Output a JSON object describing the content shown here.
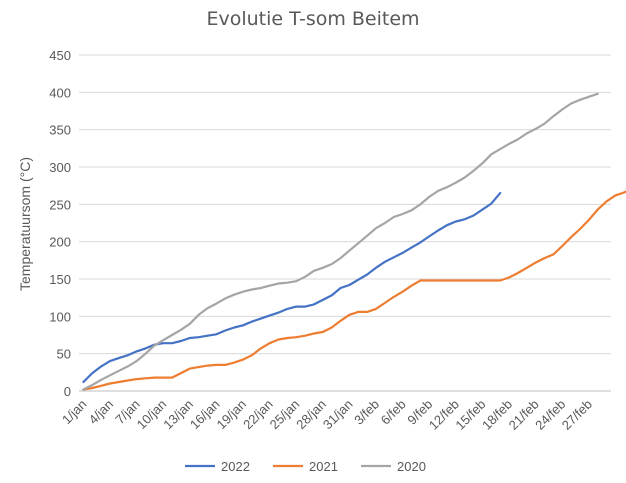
{
  "chart_data": {
    "type": "line",
    "title": "Evolutie T-som Beitem",
    "xlabel": "",
    "ylabel": "Temperatuursom (°C)",
    "ylim": [
      0,
      450
    ],
    "yticks": [
      0,
      50,
      100,
      150,
      200,
      250,
      300,
      350,
      400,
      450
    ],
    "grid": "horizontal",
    "legend_position": "bottom",
    "x_tick_labels": [
      "1/jan",
      "4/jan",
      "7/jan",
      "10/jan",
      "13/jan",
      "16/jan",
      "19/jan",
      "22/jan",
      "25/jan",
      "28/jan",
      "31/jan",
      "3/feb",
      "6/feb",
      "9/feb",
      "12/feb",
      "15/feb",
      "18/feb",
      "21/feb",
      "24/feb",
      "27/feb"
    ],
    "x_tick_step_days": 3,
    "series": [
      {
        "name": "2022",
        "color": "#4472C4",
        "values": [
          12,
          24,
          33,
          40,
          44,
          48,
          53,
          57,
          62,
          64,
          64,
          67,
          71,
          72,
          74,
          76,
          81,
          85,
          88,
          93,
          97,
          101,
          105,
          110,
          113,
          113,
          116,
          122,
          128,
          138,
          142,
          149,
          156,
          165,
          173,
          179,
          185,
          192,
          199,
          207,
          215,
          222,
          227,
          230,
          235,
          243,
          251,
          265
        ]
      },
      {
        "name": "2021",
        "color": "#ED7D31",
        "values": [
          2,
          4,
          7,
          10,
          12,
          14,
          16,
          17,
          18,
          18,
          18,
          24,
          30,
          32,
          34,
          35,
          35,
          38,
          42,
          48,
          57,
          64,
          69,
          71,
          72,
          74,
          77,
          79,
          85,
          94,
          102,
          106,
          106,
          110,
          118,
          126,
          133,
          141,
          148,
          148,
          148,
          148,
          148,
          148,
          148,
          148,
          148,
          148,
          152,
          158,
          165,
          172,
          178,
          183,
          194,
          206,
          217,
          229,
          243,
          254,
          262,
          266,
          272
        ]
      },
      {
        "name": "2020",
        "color": "#A5A5A5",
        "values": [
          2,
          8,
          15,
          21,
          27,
          33,
          40,
          50,
          61,
          68,
          75,
          82,
          90,
          102,
          111,
          117,
          124,
          129,
          133,
          136,
          138,
          141,
          144,
          145,
          147,
          153,
          161,
          165,
          170,
          178,
          188,
          198,
          208,
          218,
          225,
          233,
          237,
          242,
          250,
          260,
          268,
          273,
          279,
          286,
          295,
          305,
          317,
          324,
          331,
          337,
          345,
          351,
          358,
          368,
          377,
          385,
          390,
          394,
          398
        ]
      }
    ]
  }
}
